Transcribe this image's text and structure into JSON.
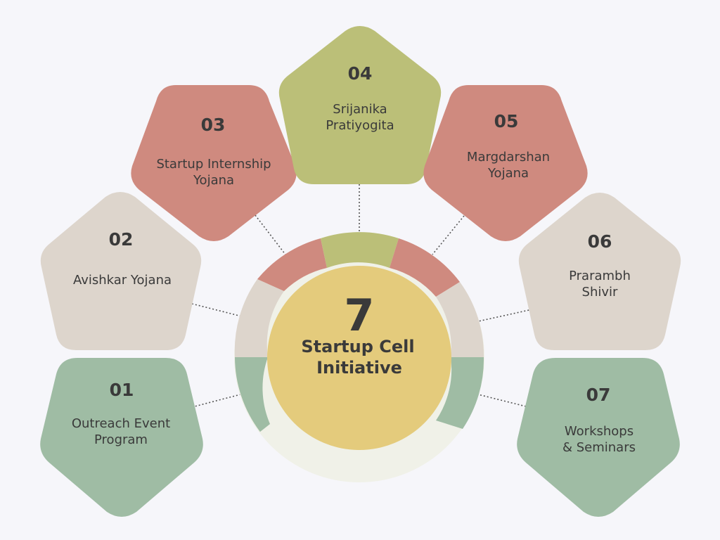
{
  "colors": {
    "background": "#f6f6fa",
    "beige": "#ddd5cc",
    "salmon": "#cf8a7f",
    "olive": "#bbbf78",
    "sage": "#9fbca4",
    "center": "#e4cb7c",
    "ring_base": "#f0f1e8",
    "text": "#3a3a3a"
  },
  "center": {
    "number": "7",
    "title_line1": "Startup Cell",
    "title_line2": "Initiative"
  },
  "items": [
    {
      "number": "01",
      "line1": "Outreach Event",
      "line2": "Program",
      "color": "sage"
    },
    {
      "number": "02",
      "line1": "Avishkar Yojana",
      "line2": "",
      "color": "beige"
    },
    {
      "number": "03",
      "line1": "Startup Internship",
      "line2": "Yojana",
      "color": "salmon"
    },
    {
      "number": "04",
      "line1": "Srijanika",
      "line2": "Pratiyogita",
      "color": "olive"
    },
    {
      "number": "05",
      "line1": "Margdarshan",
      "line2": "Yojana",
      "color": "salmon"
    },
    {
      "number": "06",
      "line1": "Prarambh",
      "line2": "Shivir",
      "color": "beige"
    },
    {
      "number": "07",
      "line1": "Workshops",
      "line2": "& Seminars",
      "color": "sage"
    }
  ]
}
